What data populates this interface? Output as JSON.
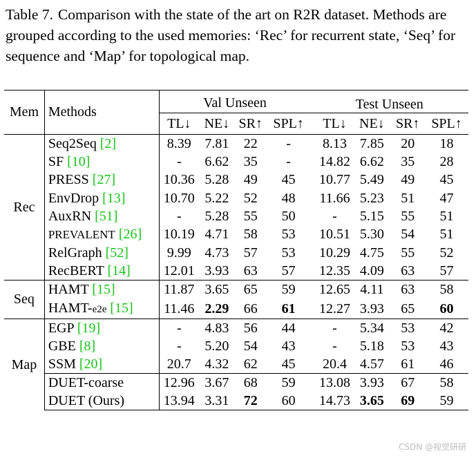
{
  "caption": {
    "label": "Table 7.",
    "text": "Comparison with the state of the art on R2R dataset. Methods are grouped according to the used memories: ‘Rec’ for recurrent state, ‘Seq’ for sequence and ‘Map’ for topological map."
  },
  "table": {
    "header": {
      "mem": "Mem",
      "methods": "Methods",
      "val_unseen": "Val Unseen",
      "test_unseen": "Test Unseen",
      "metrics": [
        "TL↓",
        "NE↓",
        "SR↑",
        "SPL↑",
        "TL↓",
        "NE↓",
        "SR↑",
        "SPL↑"
      ]
    },
    "groups": [
      {
        "mem": "Rec",
        "rows": [
          {
            "name": "Seq2Seq",
            "cite": "[2]",
            "cells": [
              "8.39",
              "7.81",
              "22",
              "-",
              "8.13",
              "7.85",
              "20",
              "18"
            ]
          },
          {
            "name": "SF",
            "cite": "[10]",
            "cells": [
              "-",
              "6.62",
              "35",
              "-",
              "14.82",
              "6.62",
              "35",
              "28"
            ]
          },
          {
            "name": "PRESS",
            "cite": "[27]",
            "cells": [
              "10.36",
              "5.28",
              "49",
              "45",
              "10.77",
              "5.49",
              "49",
              "45"
            ]
          },
          {
            "name": "EnvDrop",
            "cite": "[13]",
            "cells": [
              "10.70",
              "5.22",
              "52",
              "48",
              "11.66",
              "5.23",
              "51",
              "47"
            ]
          },
          {
            "name": "AuxRN",
            "cite": "[51]",
            "cells": [
              "-",
              "5.28",
              "55",
              "50",
              "-",
              "5.15",
              "55",
              "51"
            ]
          },
          {
            "name": "PREVALENT",
            "cite": "[26]",
            "cells": [
              "10.19",
              "4.71",
              "58",
              "53",
              "10.51",
              "5.30",
              "54",
              "51"
            ]
          },
          {
            "name": "RelGraph",
            "cite": "[52]",
            "cells": [
              "9.99",
              "4.73",
              "57",
              "53",
              "10.29",
              "4.75",
              "55",
              "52"
            ]
          },
          {
            "name": "RecBERT",
            "cite": "[14]",
            "cells": [
              "12.01",
              "3.93",
              "63",
              "57",
              "12.35",
              "4.09",
              "63",
              "57"
            ]
          }
        ]
      },
      {
        "mem": "Seq",
        "rows": [
          {
            "name": "HAMT",
            "cite": "[15]",
            "cells": [
              "11.87",
              "3.65",
              "65",
              "59",
              "12.65",
              "4.11",
              "63",
              "58"
            ]
          },
          {
            "name": "HAMT-",
            "name_sub": "e2e",
            "cite": "[15]",
            "cells": [
              "11.46",
              "2.29",
              "66",
              "61",
              "12.27",
              "3.93",
              "65",
              "60"
            ]
          }
        ]
      },
      {
        "mem": "Map",
        "rows": [
          {
            "name": "EGP",
            "cite": "[19]",
            "cells": [
              "-",
              "4.83",
              "56",
              "44",
              "-",
              "5.34",
              "53",
              "42"
            ]
          },
          {
            "name": "GBE",
            "cite": "[8]",
            "cells": [
              "-",
              "5.20",
              "54",
              "43",
              "-",
              "5.18",
              "53",
              "43"
            ]
          },
          {
            "name": "SSM",
            "cite": "[20]",
            "cells": [
              "20.7",
              "4.32",
              "62",
              "45",
              "20.4",
              "4.57",
              "61",
              "46"
            ]
          },
          {
            "name": "DUET-coarse",
            "cite": "",
            "cells": [
              "12.96",
              "3.67",
              "68",
              "59",
              "13.08",
              "3.93",
              "67",
              "58"
            ]
          },
          {
            "name": "DUET (Ours)",
            "cite": "",
            "cells": [
              "13.94",
              "3.31",
              "72",
              "60",
              "14.73",
              "3.65",
              "69",
              "59"
            ]
          }
        ]
      }
    ]
  },
  "watermark": "CSDN @视觉研研"
}
